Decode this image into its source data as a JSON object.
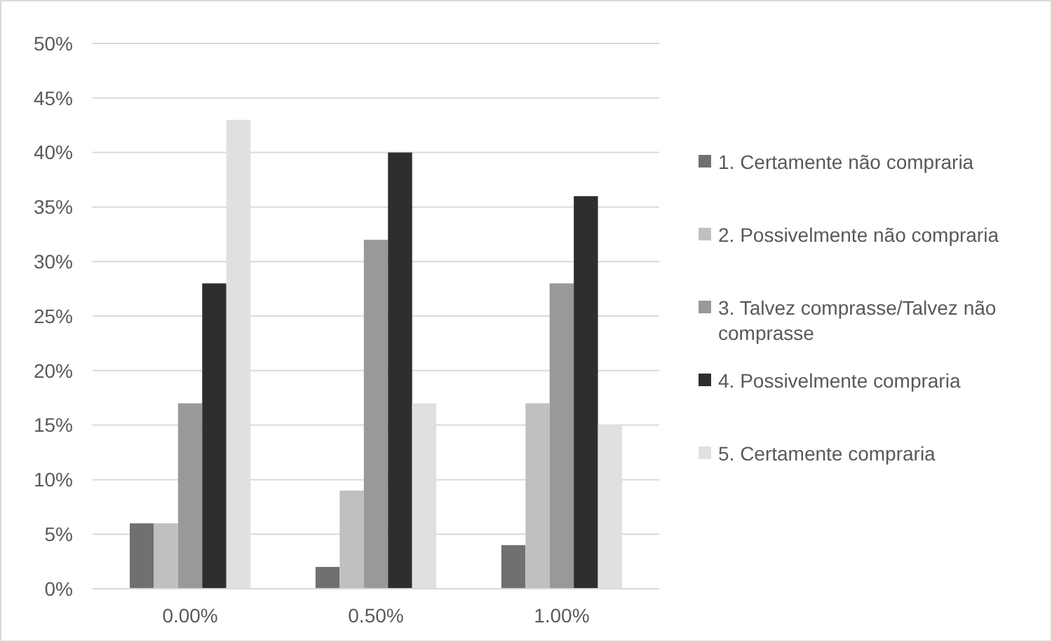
{
  "chart_data": {
    "type": "bar",
    "categories": [
      "0.00%",
      "0.50%",
      "1.00%"
    ],
    "series": [
      {
        "name": "1. Certamente não compraria",
        "color": "#707070",
        "values": [
          6,
          2,
          4
        ]
      },
      {
        "name": "2. Possivelmente não compraria",
        "color": "#c0c0c0",
        "values": [
          6,
          9,
          17
        ]
      },
      {
        "name": "3. Talvez comprasse/Talvez não comprasse",
        "color": "#999999",
        "values": [
          17,
          32,
          28
        ]
      },
      {
        "name": "4. Possivelmente compraria",
        "color": "#2e2e2e",
        "values": [
          28,
          40,
          36
        ]
      },
      {
        "name": "5. Certamente compraria",
        "color": "#e0e0e0",
        "values": [
          43,
          17,
          15
        ]
      }
    ],
    "ylim": [
      0,
      50
    ],
    "yticks": [
      {
        "value": 0,
        "label": "0%"
      },
      {
        "value": 5,
        "label": "5%"
      },
      {
        "value": 10,
        "label": "10%"
      },
      {
        "value": 15,
        "label": "15%"
      },
      {
        "value": 20,
        "label": "20%"
      },
      {
        "value": 25,
        "label": "25%"
      },
      {
        "value": 30,
        "label": "30%"
      },
      {
        "value": 35,
        "label": "35%"
      },
      {
        "value": 40,
        "label": "40%"
      },
      {
        "value": 45,
        "label": "45%"
      },
      {
        "value": 50,
        "label": "50%"
      }
    ],
    "grid": "y",
    "legend": "right"
  }
}
